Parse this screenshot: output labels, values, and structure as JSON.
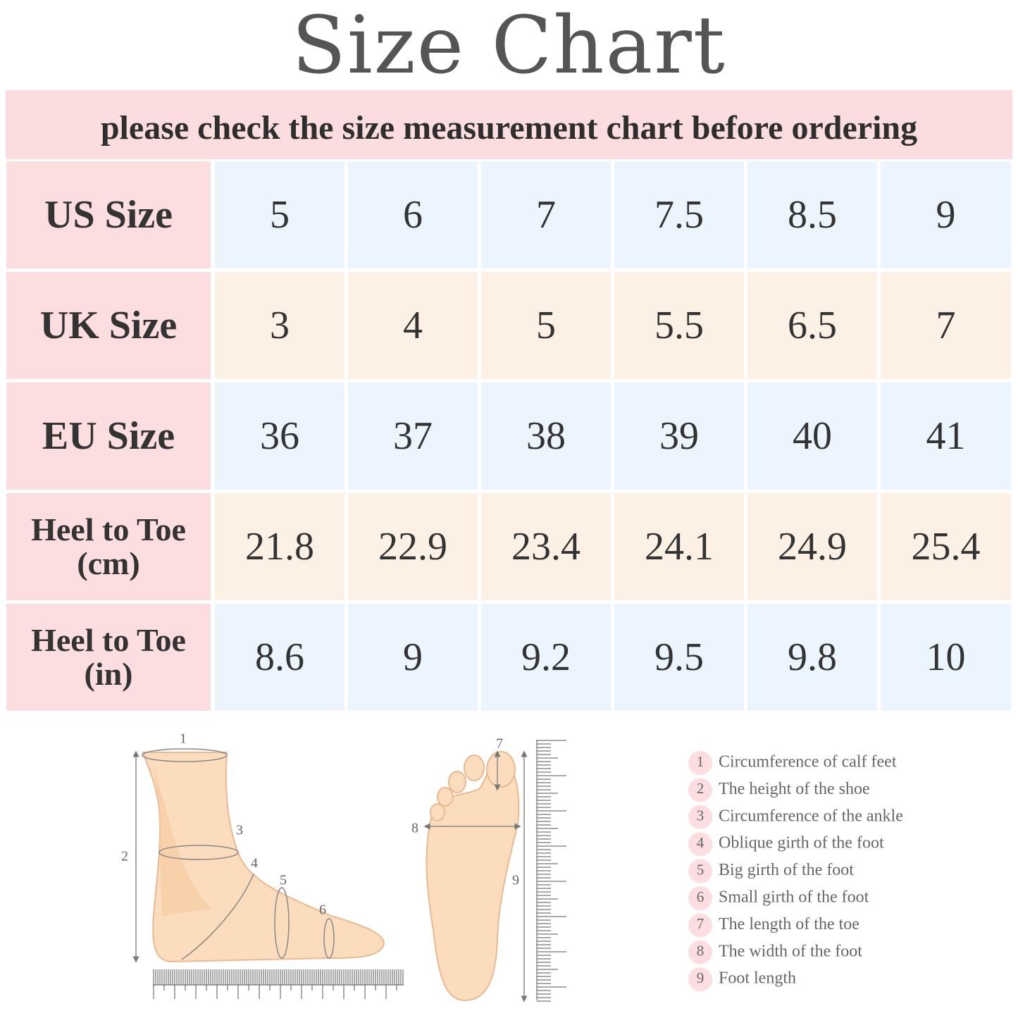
{
  "header": {
    "title": "Size  Chart",
    "subtitle": "please check the size measurement chart before ordering"
  },
  "table": {
    "rows": [
      [
        "US Size",
        "5",
        "6",
        "7",
        "7.5",
        "8.5",
        "9"
      ],
      [
        "UK Size",
        "3",
        "4",
        "5",
        "5.5",
        "6.5",
        "7"
      ],
      [
        "EU Size",
        "36",
        "37",
        "38",
        "39",
        "40",
        "41"
      ],
      [
        "Heel to Toe (cm)",
        "21.8",
        "22.9",
        "23.4",
        "24.1",
        "24.9",
        "25.4"
      ],
      [
        "Heel to Toe (in)",
        "8.6",
        "9",
        "9.2",
        "9.5",
        "9.8",
        "10"
      ]
    ]
  },
  "legend": [
    {
      "number": "1",
      "text": "Circumference of calf feet"
    },
    {
      "number": "2",
      "text": "The height of the shoe"
    },
    {
      "number": "3",
      "text": "Circumference of the ankle"
    },
    {
      "number": "4",
      "text": "Oblique girth of the foot"
    },
    {
      "number": "5",
      "text": "Big girth of the foot"
    },
    {
      "number": "6",
      "text": "Small girth of the foot"
    },
    {
      "number": "7",
      "text": "The length of the toe"
    },
    {
      "number": "8",
      "text": "The width of the foot"
    },
    {
      "number": "9",
      "text": "Foot length"
    }
  ]
}
